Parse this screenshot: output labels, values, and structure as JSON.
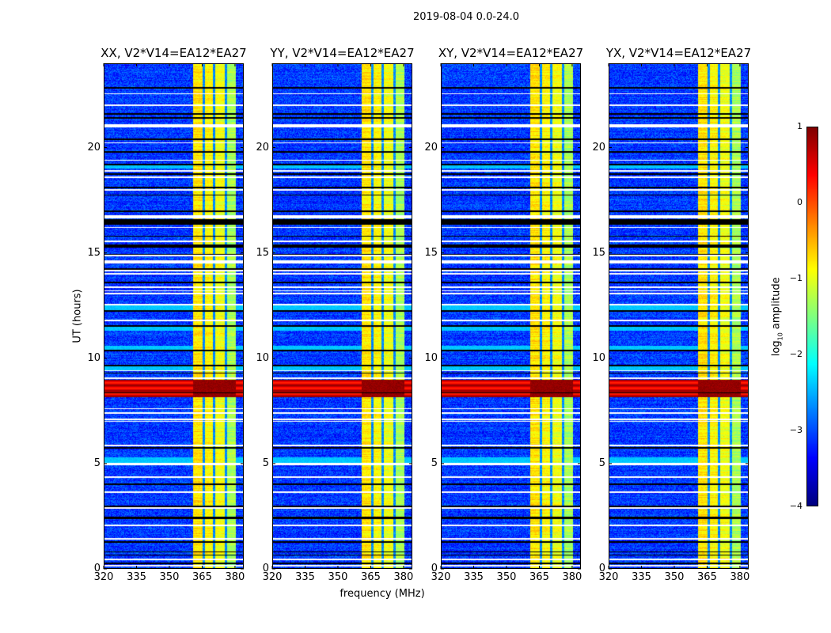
{
  "chart_data": {
    "type": "heatmap",
    "title": "2019-08-04 0.0-24.0",
    "xlabel": "frequency (MHz)",
    "ylabel": "UT (hours)",
    "xlim": [
      320,
      384
    ],
    "ylim": [
      0,
      24
    ],
    "xticks": [
      "320",
      "335",
      "350",
      "365",
      "380"
    ],
    "xtick_values": [
      320,
      335,
      350,
      365,
      380
    ],
    "yticks": [
      "0",
      "5",
      "10",
      "15",
      "20"
    ],
    "ytick_values": [
      0,
      5,
      10,
      15,
      20
    ],
    "panels": [
      {
        "title": "XX, V2*V14=EA12*EA27",
        "seed": 11
      },
      {
        "title": "YY, V2*V14=EA12*EA27",
        "seed": 23
      },
      {
        "title": "XY, V2*V14=EA12*EA27",
        "seed": 37
      },
      {
        "title": "YX, V2*V14=EA12*EA27",
        "seed": 53
      }
    ],
    "colorbar": {
      "label_prefix": "log",
      "label_sub": "10",
      "label_suffix": " amplitude",
      "range": [
        -4,
        1
      ],
      "cmap": "jet",
      "ticks": [
        "1",
        "0",
        "−1",
        "−2",
        "−3",
        "−4"
      ],
      "tick_values": [
        1,
        0,
        -1,
        -2,
        -3,
        -4
      ]
    },
    "background_level": -3.1,
    "band": {
      "start_mhz": 360.9,
      "end_mhz": 380.5,
      "gap_mhz": [
        365.7,
        370.5,
        375.8
      ],
      "gap_level": -2.7,
      "subband_levels": [
        -0.75,
        -0.85,
        -0.95,
        -1.3
      ]
    },
    "rfi": {
      "ut": [
        8.16,
        8.97
      ],
      "level": 0.55,
      "band_level": 0.9
    },
    "elevated_ut": [
      [
        19.0,
        19.2
      ],
      [
        12.3,
        12.5
      ],
      [
        11.3,
        11.5
      ],
      [
        10.36,
        10.6
      ],
      [
        9.4,
        9.6
      ],
      [
        5.0,
        5.3
      ]
    ],
    "flagged_white_ut": [
      [
        22.52,
        22.58
      ],
      [
        21.97,
        22.03
      ],
      [
        20.95,
        21.12
      ],
      [
        20.2,
        20.26
      ],
      [
        19.37,
        19.43
      ],
      [
        18.87,
        18.93
      ],
      [
        18.57,
        18.63
      ],
      [
        17.97,
        18.03
      ],
      [
        16.62,
        16.78
      ],
      [
        16.17,
        16.23
      ],
      [
        15.52,
        15.58
      ],
      [
        14.84,
        14.9
      ],
      [
        14.48,
        14.65
      ],
      [
        14.14,
        14.2
      ],
      [
        13.97,
        14.03
      ],
      [
        13.34,
        13.4
      ],
      [
        13.17,
        13.23
      ],
      [
        13.04,
        13.1
      ],
      [
        12.51,
        12.57
      ],
      [
        11.76,
        11.82
      ],
      [
        9.38,
        9.44
      ],
      [
        9.02,
        9.08
      ],
      [
        7.57,
        7.63
      ],
      [
        7.37,
        7.43
      ],
      [
        7.07,
        7.13
      ],
      [
        6.97,
        7.03
      ],
      [
        5.83,
        5.89
      ],
      [
        4.93,
        5.05
      ],
      [
        4.33,
        4.39
      ],
      [
        3.62,
        3.68
      ],
      [
        2.86,
        2.92
      ],
      [
        2.04,
        2.1
      ],
      [
        1.4,
        1.46
      ],
      [
        0.43,
        0.49
      ],
      [
        0.12,
        0.18
      ]
    ],
    "dropout_black_ut": [
      [
        22.8,
        22.86
      ],
      [
        21.57,
        21.63
      ],
      [
        21.37,
        21.43
      ],
      [
        20.37,
        20.43
      ],
      [
        19.77,
        19.83
      ],
      [
        19.17,
        19.23
      ],
      [
        18.71,
        18.77
      ],
      [
        18.07,
        18.13
      ],
      [
        17.71,
        17.77
      ],
      [
        16.94,
        17.0
      ],
      [
        16.35,
        16.6
      ],
      [
        15.77,
        15.83
      ],
      [
        15.25,
        15.4
      ],
      [
        14.87,
        14.93
      ],
      [
        14.2,
        14.26
      ],
      [
        13.57,
        13.63
      ],
      [
        12.21,
        12.27
      ],
      [
        11.5,
        11.56
      ],
      [
        10.33,
        10.39
      ],
      [
        9.62,
        9.68
      ],
      [
        9.26,
        9.32
      ],
      [
        8.32,
        8.38
      ],
      [
        5.72,
        5.78
      ],
      [
        3.99,
        4.05
      ],
      [
        2.94,
        3.0
      ],
      [
        2.37,
        2.48
      ],
      [
        1.25,
        1.31
      ],
      [
        0.77,
        0.83
      ],
      [
        0.62,
        0.68
      ],
      [
        0.24,
        0.3
      ]
    ]
  }
}
